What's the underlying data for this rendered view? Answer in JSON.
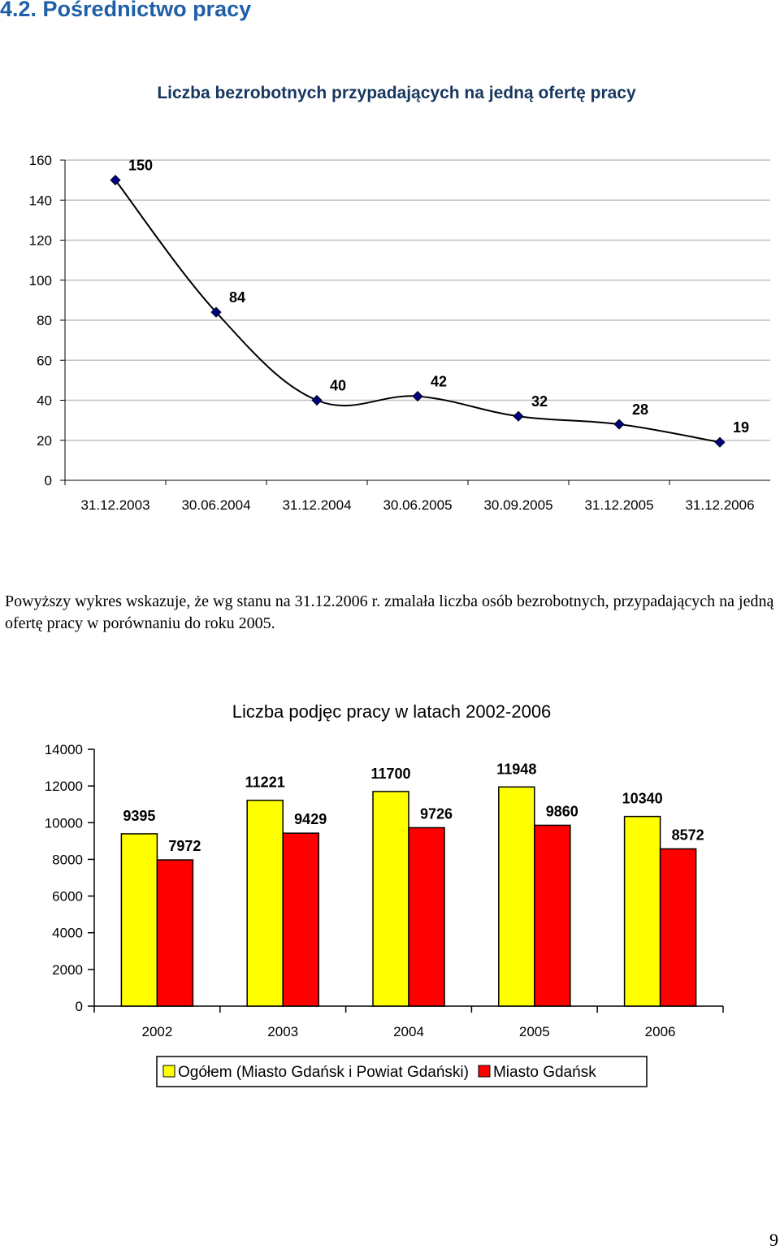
{
  "page": {
    "section_title": "4.2. Pośrednictwo pracy",
    "paragraph": "Powyższy wykres wskazuje, że wg stanu na 31.12.2006 r. zmalała liczba osób bezrobotnych, przypadających na jedną ofertę pracy w porównaniu do roku 2005.",
    "page_number": "9"
  },
  "chart_data": [
    {
      "type": "line",
      "title": "Liczba bezrobotnych przypadających na jedną ofertę pracy",
      "categories": [
        "31.12.2003",
        "30.06.2004",
        "31.12.2004",
        "30.06.2005",
        "30.09.2005",
        "31.12.2005",
        "31.12.2006"
      ],
      "series": [
        {
          "values": [
            150,
            84,
            40,
            42,
            32,
            28,
            19
          ],
          "color": "#000080"
        }
      ],
      "ylim": [
        0,
        160
      ],
      "yticks": [
        0,
        20,
        40,
        60,
        80,
        100,
        120,
        140,
        160
      ],
      "grid": true,
      "smooth": true
    },
    {
      "type": "bar",
      "title": "Liczba podjęc pracy w latach 2002-2006",
      "categories": [
        "2002",
        "2003",
        "2004",
        "2005",
        "2006"
      ],
      "series": [
        {
          "name": "Ogółem (Miasto Gdańsk i Powiat Gdański)",
          "values": [
            9395,
            11221,
            11700,
            11948,
            10340
          ],
          "color": "#ffff00"
        },
        {
          "name": "Miasto Gdańsk",
          "values": [
            7972,
            9429,
            9726,
            9860,
            8572
          ],
          "color": "#ff0000"
        }
      ],
      "ylim": [
        0,
        14000
      ],
      "yticks": [
        0,
        2000,
        4000,
        6000,
        8000,
        10000,
        12000,
        14000
      ],
      "grid": false,
      "legend_position": "bottom"
    }
  ]
}
